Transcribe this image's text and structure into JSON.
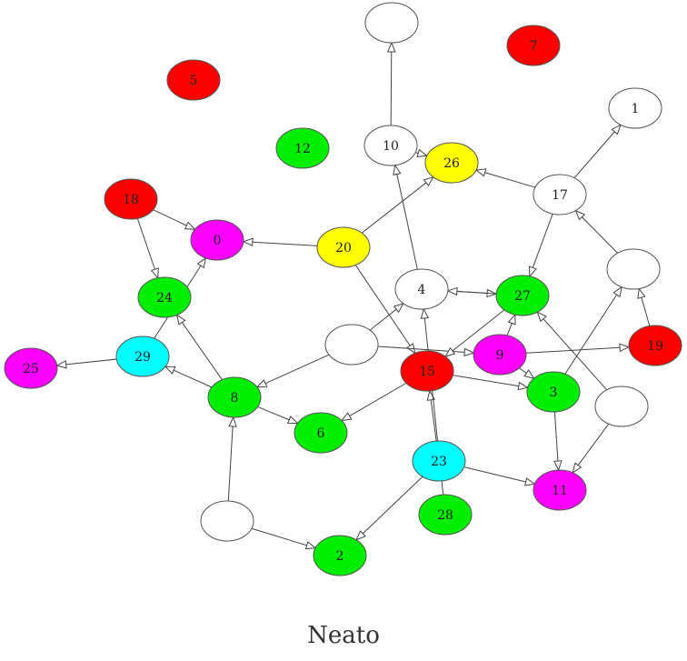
{
  "caption": "Neato",
  "colors": {
    "red": "#ff0000",
    "green": "#00ee00",
    "magenta": "#ff00ff",
    "yellow": "#ffff00",
    "cyan": "#00ffff",
    "white": "#ffffff"
  },
  "nodes": [
    {
      "id": "n5",
      "label": "5",
      "color": "red"
    },
    {
      "id": "n7",
      "label": "7",
      "color": "red"
    },
    {
      "id": "nTop",
      "label": "",
      "color": "white"
    },
    {
      "id": "n1",
      "label": "1",
      "color": "white"
    },
    {
      "id": "n12",
      "label": "12",
      "color": "green"
    },
    {
      "id": "n10",
      "label": "10",
      "color": "white"
    },
    {
      "id": "n26",
      "label": "26",
      "color": "yellow"
    },
    {
      "id": "n17",
      "label": "17",
      "color": "white"
    },
    {
      "id": "n18",
      "label": "18",
      "color": "red"
    },
    {
      "id": "n0",
      "label": "0",
      "color": "magenta"
    },
    {
      "id": "n20",
      "label": "20",
      "color": "yellow"
    },
    {
      "id": "n24",
      "label": "24",
      "color": "green"
    },
    {
      "id": "n4",
      "label": "4",
      "color": "white"
    },
    {
      "id": "n27",
      "label": "27",
      "color": "green"
    },
    {
      "id": "nR",
      "label": "",
      "color": "white"
    },
    {
      "id": "n29",
      "label": "29",
      "color": "cyan"
    },
    {
      "id": "n25",
      "label": "25",
      "color": "magenta"
    },
    {
      "id": "nM",
      "label": "",
      "color": "white"
    },
    {
      "id": "n15",
      "label": "15",
      "color": "red"
    },
    {
      "id": "n9",
      "label": "9",
      "color": "magenta"
    },
    {
      "id": "n19",
      "label": "19",
      "color": "red"
    },
    {
      "id": "n8",
      "label": "8",
      "color": "green"
    },
    {
      "id": "n3",
      "label": "3",
      "color": "green"
    },
    {
      "id": "nRB",
      "label": "",
      "color": "white"
    },
    {
      "id": "n6",
      "label": "6",
      "color": "green"
    },
    {
      "id": "n23",
      "label": "23",
      "color": "cyan"
    },
    {
      "id": "n11",
      "label": "11",
      "color": "magenta"
    },
    {
      "id": "n28",
      "label": "28",
      "color": "green"
    },
    {
      "id": "nB",
      "label": "",
      "color": "white"
    },
    {
      "id": "n2",
      "label": "2",
      "color": "green"
    }
  ],
  "edges": [
    [
      "n10",
      "nTop"
    ],
    [
      "n17",
      "n1"
    ],
    [
      "n10",
      "n26"
    ],
    [
      "n20",
      "n26"
    ],
    [
      "n17",
      "n26"
    ],
    [
      "n18",
      "n0"
    ],
    [
      "n18",
      "n24"
    ],
    [
      "n20",
      "n0"
    ],
    [
      "n29",
      "n0"
    ],
    [
      "n8",
      "n24"
    ],
    [
      "n20",
      "n15"
    ],
    [
      "n4",
      "n10"
    ],
    [
      "n4",
      "n27"
    ],
    [
      "n27",
      "n4"
    ],
    [
      "n17",
      "n27"
    ],
    [
      "nR",
      "n17"
    ],
    [
      "n3",
      "nR"
    ],
    [
      "n19",
      "nR"
    ],
    [
      "n29",
      "n25"
    ],
    [
      "nM",
      "n4"
    ],
    [
      "nM",
      "n8"
    ],
    [
      "nM",
      "n9"
    ],
    [
      "n27",
      "n15"
    ],
    [
      "n9",
      "n27"
    ],
    [
      "n9",
      "n19"
    ],
    [
      "n9",
      "n3"
    ],
    [
      "n15",
      "n3"
    ],
    [
      "nRB",
      "n27"
    ],
    [
      "nRB",
      "n11"
    ],
    [
      "n3",
      "n11"
    ],
    [
      "n8",
      "n29"
    ],
    [
      "n8",
      "n6"
    ],
    [
      "n15",
      "n6"
    ],
    [
      "n23",
      "n15"
    ],
    [
      "n28",
      "n4"
    ],
    [
      "n23",
      "n11"
    ],
    [
      "n23",
      "n2"
    ],
    [
      "nB",
      "n8"
    ],
    [
      "nB",
      "n2"
    ]
  ]
}
